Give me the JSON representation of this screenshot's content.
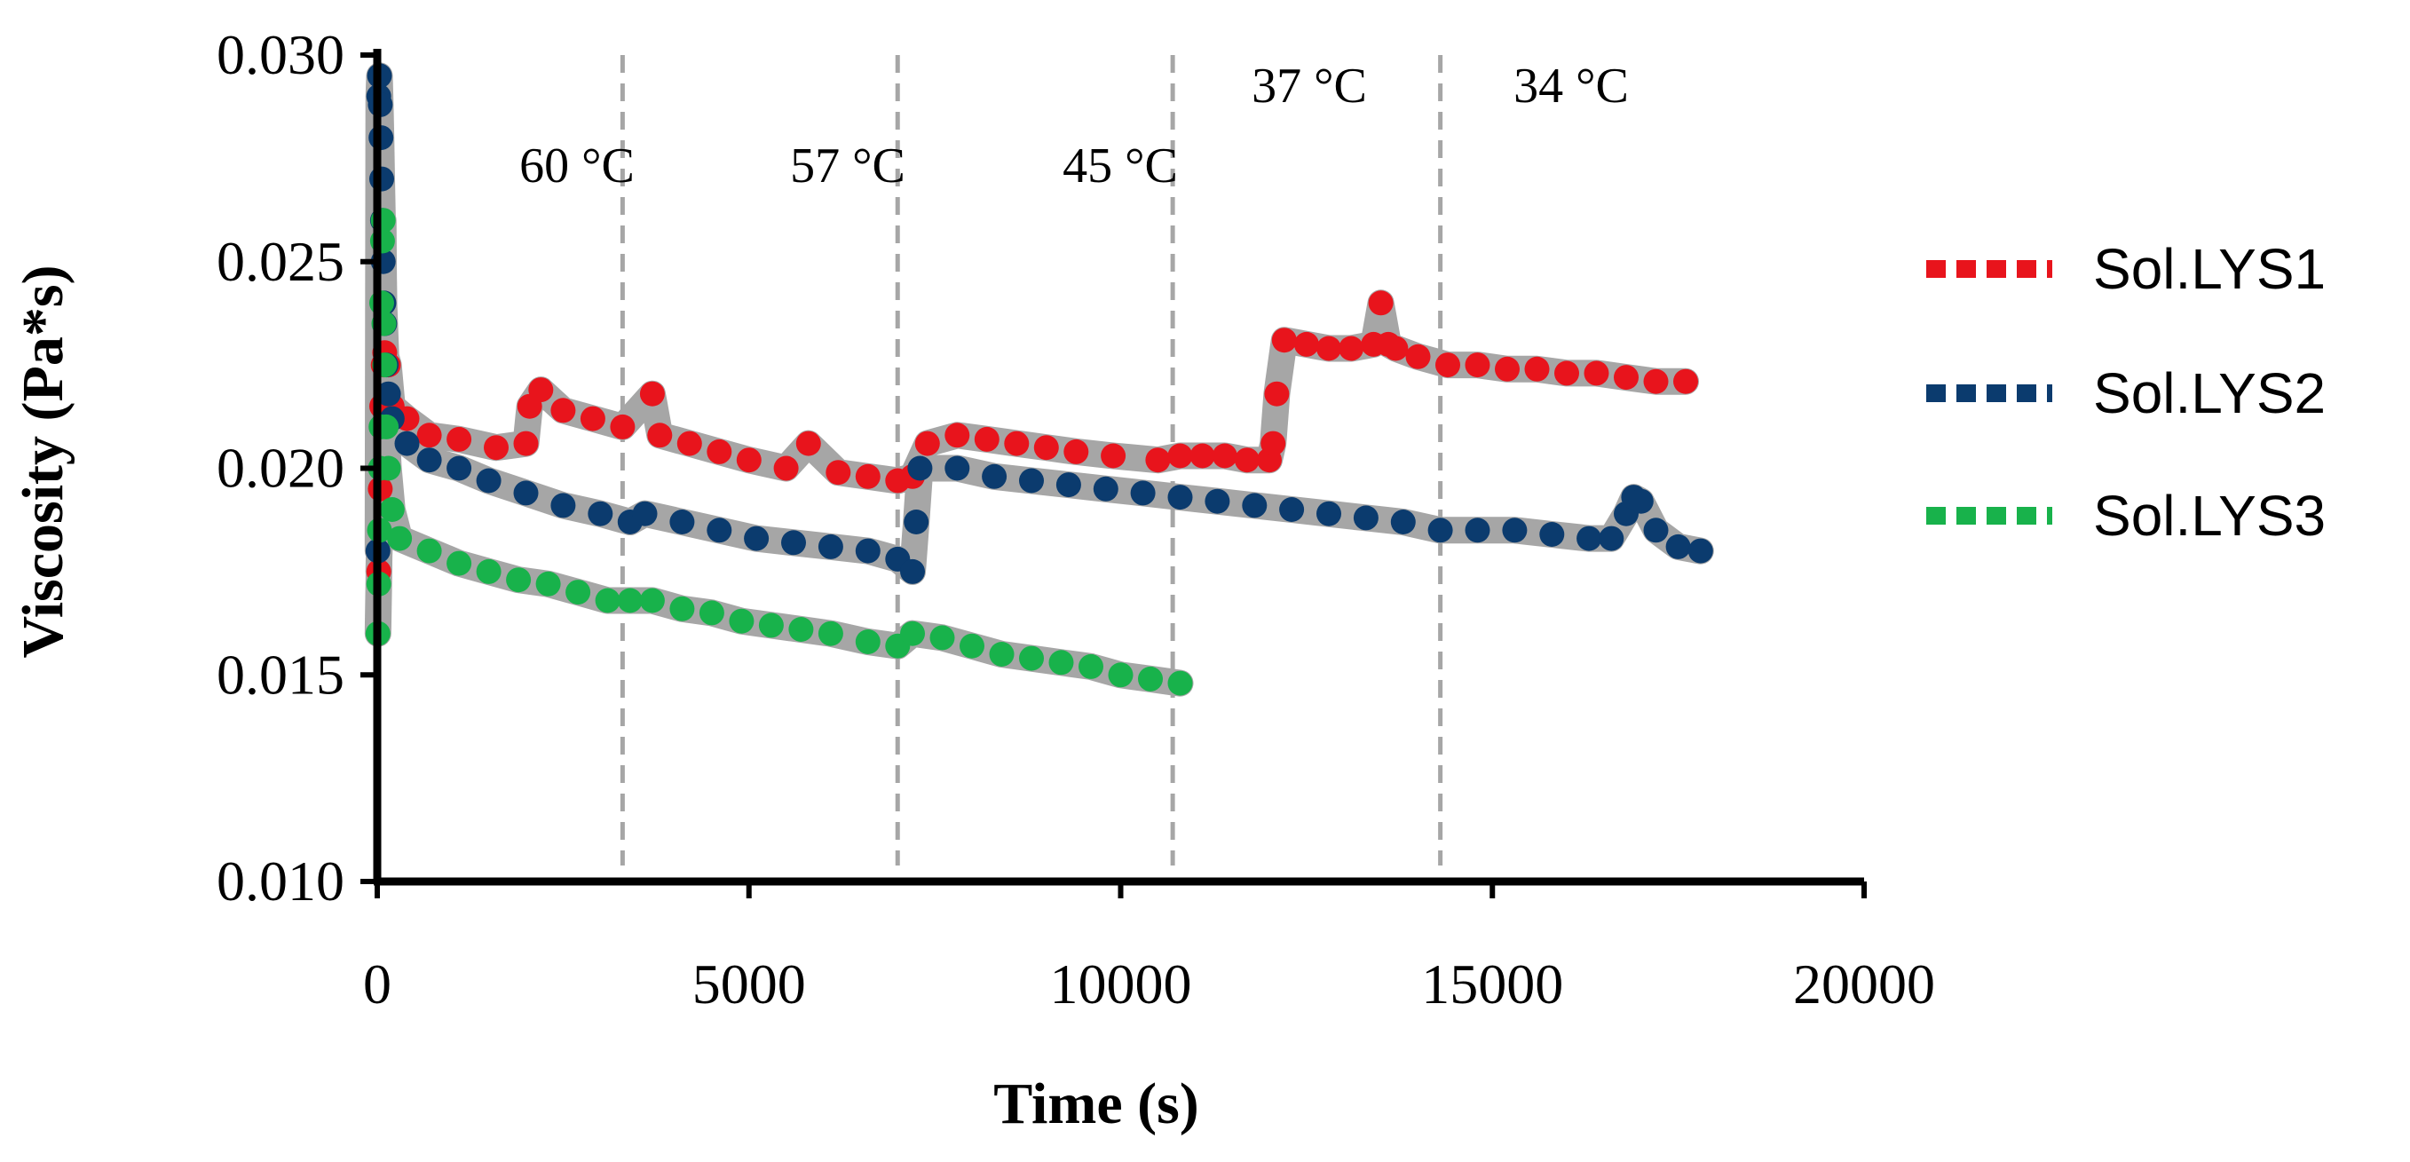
{
  "chart_data": {
    "type": "scatter",
    "title": "",
    "xlabel": "Time (s)",
    "ylabel": "Viscosity (Pa*s)",
    "xlim": [
      0,
      20000
    ],
    "ylim": [
      0.01,
      0.03
    ],
    "x_ticks": [
      0,
      5000,
      10000,
      15000,
      20000
    ],
    "x_tick_labels": [
      "0",
      "5000",
      "10000",
      "15000",
      "20000"
    ],
    "y_ticks": [
      0.01,
      0.015,
      0.02,
      0.025,
      0.03
    ],
    "y_tick_labels": [
      "0.010",
      "0.015",
      "0.020",
      "0.025",
      "0.030"
    ],
    "legend_position": "right",
    "annotations": [
      {
        "label": "60 °C",
        "divider_x": 3300
      },
      {
        "label": "57 °C",
        "divider_x": 7000
      },
      {
        "label": "45 °C",
        "divider_x": 10700
      },
      {
        "label": "37 °C",
        "divider_x": 14300
      },
      {
        "label": "34 °C",
        "divider_x": null
      }
    ],
    "series": [
      {
        "name": "Sol.LYS1",
        "color": "#e8141c",
        "x": [
          20,
          40,
          60,
          80,
          100,
          150,
          200,
          400,
          700,
          1100,
          1600,
          2000,
          2050,
          2200,
          2500,
          2900,
          3300,
          3700,
          3800,
          4200,
          4600,
          5000,
          5500,
          5800,
          6200,
          6600,
          7000,
          7200,
          7400,
          7800,
          8200,
          8600,
          9000,
          9400,
          9900,
          10500,
          10800,
          11100,
          11400,
          11700,
          12000,
          12050,
          12100,
          12200,
          12500,
          12800,
          13100,
          13400,
          13500,
          13600,
          13700,
          14000,
          14400,
          14800,
          15200,
          15600,
          16000,
          16400,
          16800,
          17200,
          17600
        ],
        "y": [
          0.0175,
          0.0195,
          0.0215,
          0.0225,
          0.0228,
          0.0225,
          0.0215,
          0.0212,
          0.0208,
          0.0207,
          0.0205,
          0.0206,
          0.0215,
          0.0219,
          0.0214,
          0.0212,
          0.021,
          0.0218,
          0.0208,
          0.0206,
          0.0204,
          0.0202,
          0.02,
          0.0206,
          0.0199,
          0.0198,
          0.0197,
          0.0198,
          0.0206,
          0.0208,
          0.0207,
          0.0206,
          0.0205,
          0.0204,
          0.0203,
          0.0202,
          0.0203,
          0.0203,
          0.0203,
          0.0202,
          0.0202,
          0.0206,
          0.0218,
          0.0231,
          0.023,
          0.0229,
          0.0229,
          0.023,
          0.024,
          0.023,
          0.0229,
          0.0227,
          0.0225,
          0.0225,
          0.0224,
          0.0224,
          0.0223,
          0.0223,
          0.0222,
          0.0221,
          0.0221
        ]
      },
      {
        "name": "Sol.LYS2",
        "color": "#0b3b6e",
        "x": [
          10,
          20,
          30,
          40,
          50,
          60,
          70,
          80,
          90,
          100,
          120,
          150,
          200,
          400,
          700,
          1100,
          1500,
          2000,
          2500,
          3000,
          3400,
          3600,
          4100,
          4600,
          5100,
          5600,
          6100,
          6600,
          7000,
          7200,
          7250,
          7300,
          7800,
          8300,
          8800,
          9300,
          9800,
          10300,
          10800,
          11300,
          11800,
          12300,
          12800,
          13300,
          13800,
          14300,
          14800,
          15300,
          15800,
          16300,
          16600,
          16800,
          16900,
          17000,
          17200,
          17500,
          17800
        ],
        "y": [
          0.018,
          0.029,
          0.0295,
          0.0288,
          0.028,
          0.027,
          0.026,
          0.025,
          0.024,
          0.0235,
          0.0225,
          0.0218,
          0.0212,
          0.0206,
          0.0202,
          0.02,
          0.0197,
          0.0194,
          0.0191,
          0.0189,
          0.0187,
          0.0189,
          0.0187,
          0.0185,
          0.0183,
          0.0182,
          0.0181,
          0.018,
          0.0178,
          0.0175,
          0.0187,
          0.02,
          0.02,
          0.0198,
          0.0197,
          0.0196,
          0.0195,
          0.0194,
          0.0193,
          0.0192,
          0.0191,
          0.019,
          0.0189,
          0.0188,
          0.0187,
          0.0185,
          0.0185,
          0.0185,
          0.0184,
          0.0183,
          0.0183,
          0.0189,
          0.0193,
          0.0192,
          0.0185,
          0.0181,
          0.018
        ]
      },
      {
        "name": "Sol.LYS3",
        "color": "#18b24b",
        "x": [
          10,
          20,
          30,
          40,
          50,
          60,
          70,
          80,
          90,
          100,
          120,
          150,
          200,
          300,
          700,
          1100,
          1500,
          1900,
          2300,
          2700,
          3100,
          3400,
          3700,
          4100,
          4500,
          4900,
          5300,
          5700,
          6100,
          6600,
          7000,
          7200,
          7600,
          8000,
          8400,
          8800,
          9200,
          9600,
          10000,
          10400,
          10800
        ],
        "y": [
          0.016,
          0.0172,
          0.0185,
          0.02,
          0.021,
          0.024,
          0.0255,
          0.026,
          0.0235,
          0.0225,
          0.021,
          0.02,
          0.019,
          0.0183,
          0.018,
          0.0177,
          0.0175,
          0.0173,
          0.0172,
          0.017,
          0.0168,
          0.0168,
          0.0168,
          0.0166,
          0.0165,
          0.0163,
          0.0162,
          0.0161,
          0.016,
          0.0158,
          0.0157,
          0.016,
          0.0159,
          0.0157,
          0.0155,
          0.0154,
          0.0153,
          0.0152,
          0.015,
          0.0149,
          0.0148
        ]
      }
    ]
  }
}
